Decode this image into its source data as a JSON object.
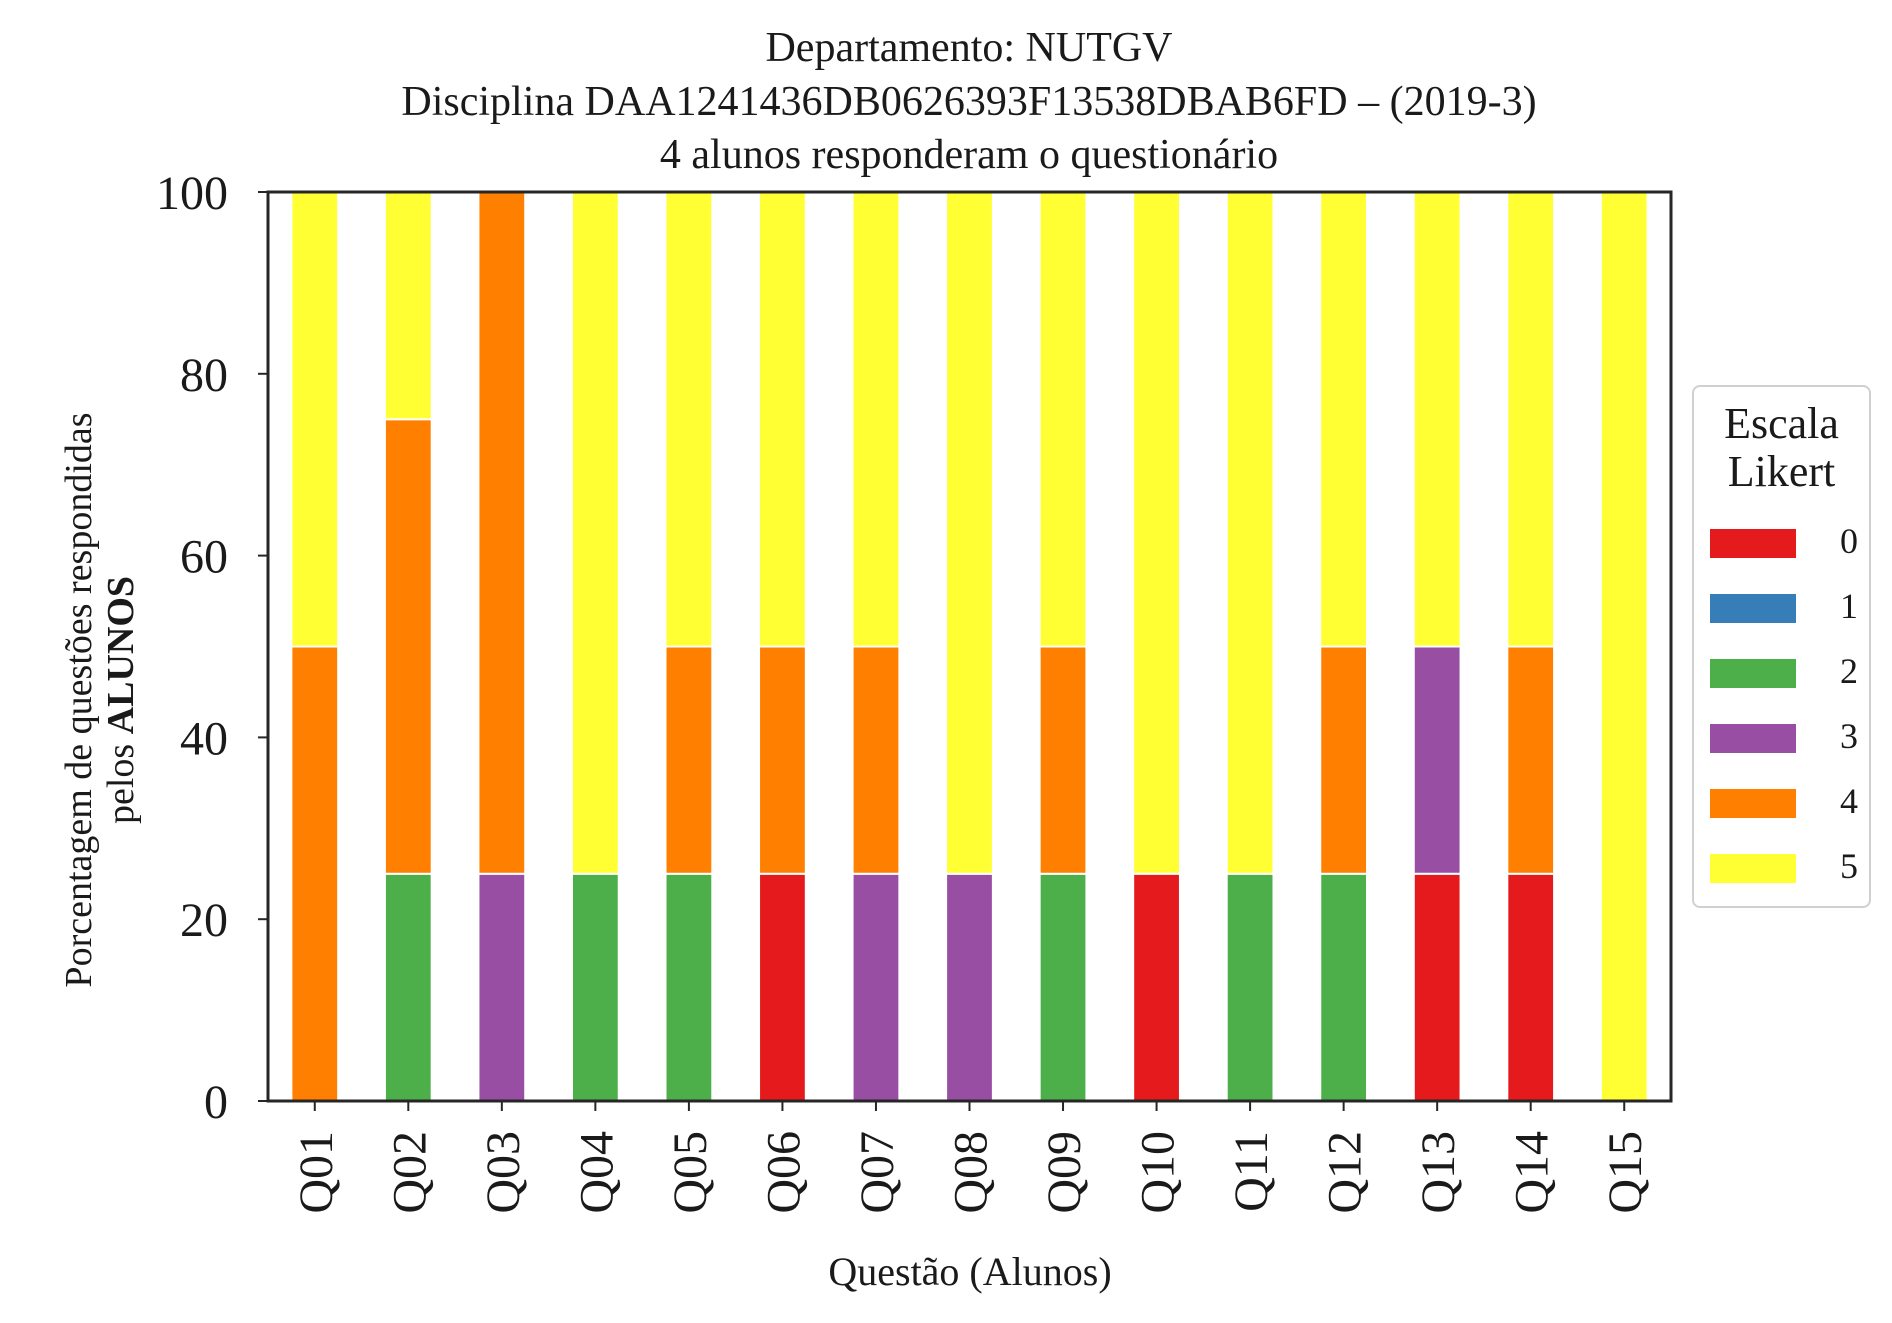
{
  "title": {
    "line1": "Departamento: NUTGV",
    "line2": "Disciplina DAA1241436DB0626393F13538DBAB6FD – (2019-3)",
    "line3": "4 alunos responderam o questionário"
  },
  "axes": {
    "ylabel_line1": "Porcentagem de questões respondidas",
    "ylabel_line2_prefix": "pelos ",
    "ylabel_line2_bold": "ALUNOS",
    "xlabel": "Questão (Alunos)"
  },
  "legend": {
    "title_line1": "Escala",
    "title_line2": "Likert",
    "items": [
      {
        "label": "0",
        "color": "#e41a1c"
      },
      {
        "label": "1",
        "color": "#377eb8"
      },
      {
        "label": "2",
        "color": "#4daf4a"
      },
      {
        "label": "3",
        "color": "#984ea3"
      },
      {
        "label": "4",
        "color": "#ff7f00"
      },
      {
        "label": "5",
        "color": "#ffff33"
      }
    ]
  },
  "chart_data": {
    "type": "bar",
    "stacked": true,
    "categories": [
      "Q01",
      "Q02",
      "Q03",
      "Q04",
      "Q05",
      "Q06",
      "Q07",
      "Q08",
      "Q09",
      "Q10",
      "Q11",
      "Q12",
      "Q13",
      "Q14",
      "Q15"
    ],
    "series": [
      {
        "name": "0",
        "color": "#e41a1c",
        "values": [
          0,
          0,
          0,
          0,
          0,
          25,
          0,
          0,
          0,
          25,
          0,
          0,
          25,
          25,
          0
        ]
      },
      {
        "name": "1",
        "color": "#377eb8",
        "values": [
          0,
          0,
          0,
          0,
          0,
          0,
          0,
          0,
          0,
          0,
          0,
          0,
          0,
          0,
          0
        ]
      },
      {
        "name": "2",
        "color": "#4daf4a",
        "values": [
          0,
          25,
          0,
          25,
          25,
          0,
          0,
          0,
          25,
          0,
          25,
          25,
          0,
          0,
          0
        ]
      },
      {
        "name": "3",
        "color": "#984ea3",
        "values": [
          0,
          0,
          25,
          0,
          0,
          0,
          25,
          25,
          0,
          0,
          0,
          0,
          25,
          0,
          0
        ]
      },
      {
        "name": "4",
        "color": "#ff7f00",
        "values": [
          50,
          50,
          75,
          0,
          25,
          25,
          25,
          0,
          25,
          0,
          0,
          25,
          0,
          25,
          0
        ]
      },
      {
        "name": "5",
        "color": "#ffff33",
        "values": [
          50,
          25,
          0,
          75,
          50,
          50,
          50,
          75,
          50,
          75,
          75,
          50,
          50,
          50,
          100
        ]
      }
    ],
    "ylim": [
      0,
      100
    ],
    "yticks": [
      0,
      20,
      40,
      60,
      80,
      100
    ],
    "grid": false,
    "legend_position": "right"
  }
}
